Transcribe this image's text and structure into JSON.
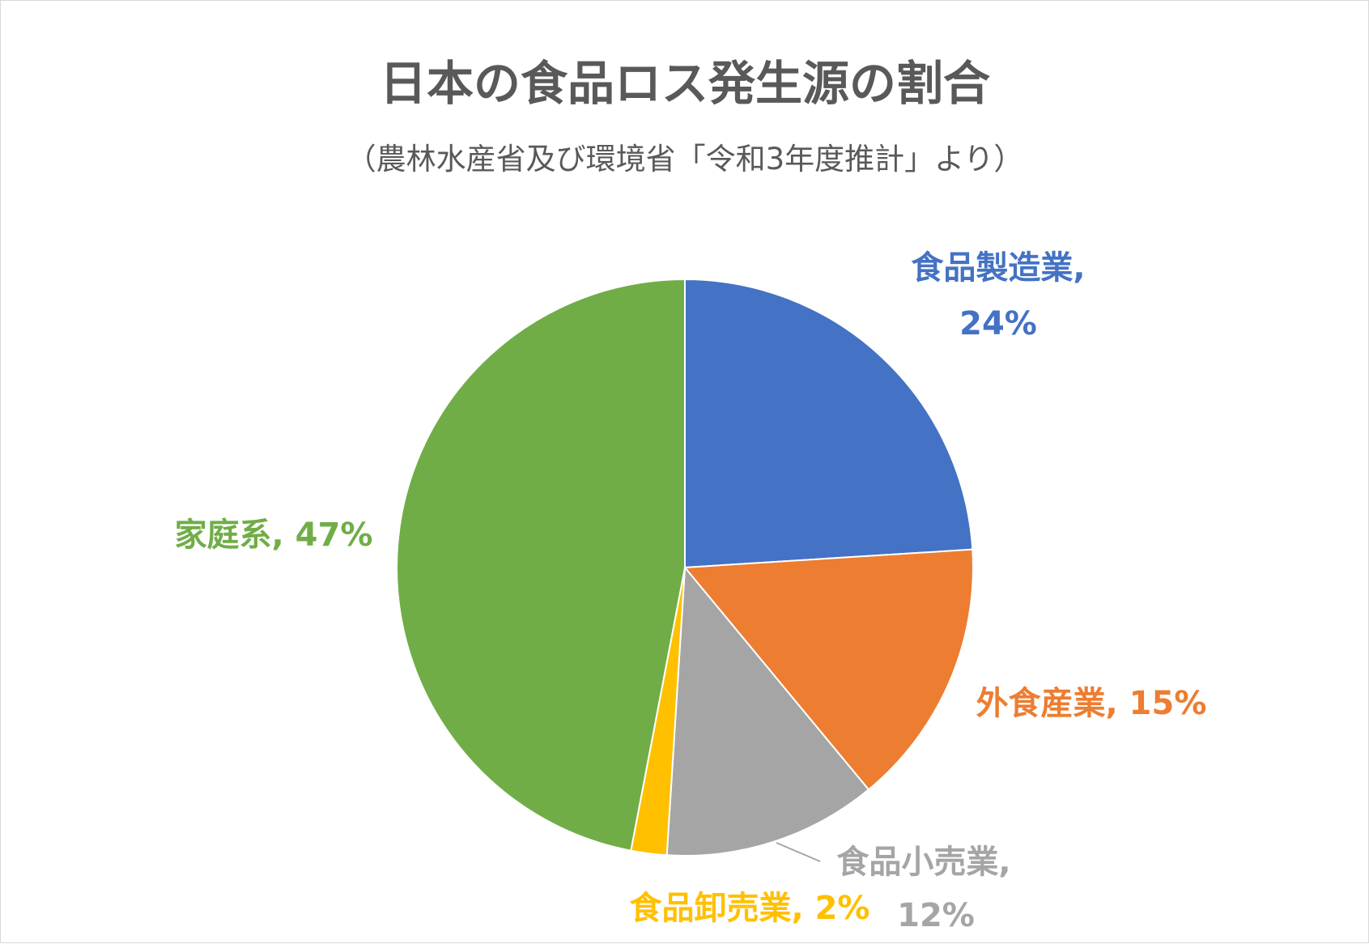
{
  "chart_data": {
    "type": "pie",
    "title": "日本の食品ロス発生源の割合",
    "subtitle": "（農林水産省及び環境省「令和3年度推計」より）",
    "slices": [
      {
        "name": "食品製造業",
        "value": 24,
        "label_line1": "食品製造業,",
        "label_line2": "24%",
        "color": "#4472c4"
      },
      {
        "name": "外食産業",
        "value": 15,
        "label_line1": "外食産業, 15%",
        "label_line2": "",
        "color": "#ed7d31"
      },
      {
        "name": "食品小売業",
        "value": 12,
        "label_line1": "食品小売業,",
        "label_line2": "12%",
        "color": "#a5a5a5"
      },
      {
        "name": "食品卸売業",
        "value": 2,
        "label_line1": "食品卸売業, 2%",
        "label_line2": "",
        "color": "#ffc000"
      },
      {
        "name": "家庭系",
        "value": 47,
        "label_line1": "家庭系, 47%",
        "label_line2": "",
        "color": "#70ad47"
      }
    ],
    "start_angle_deg": 0,
    "direction": "clockwise"
  }
}
